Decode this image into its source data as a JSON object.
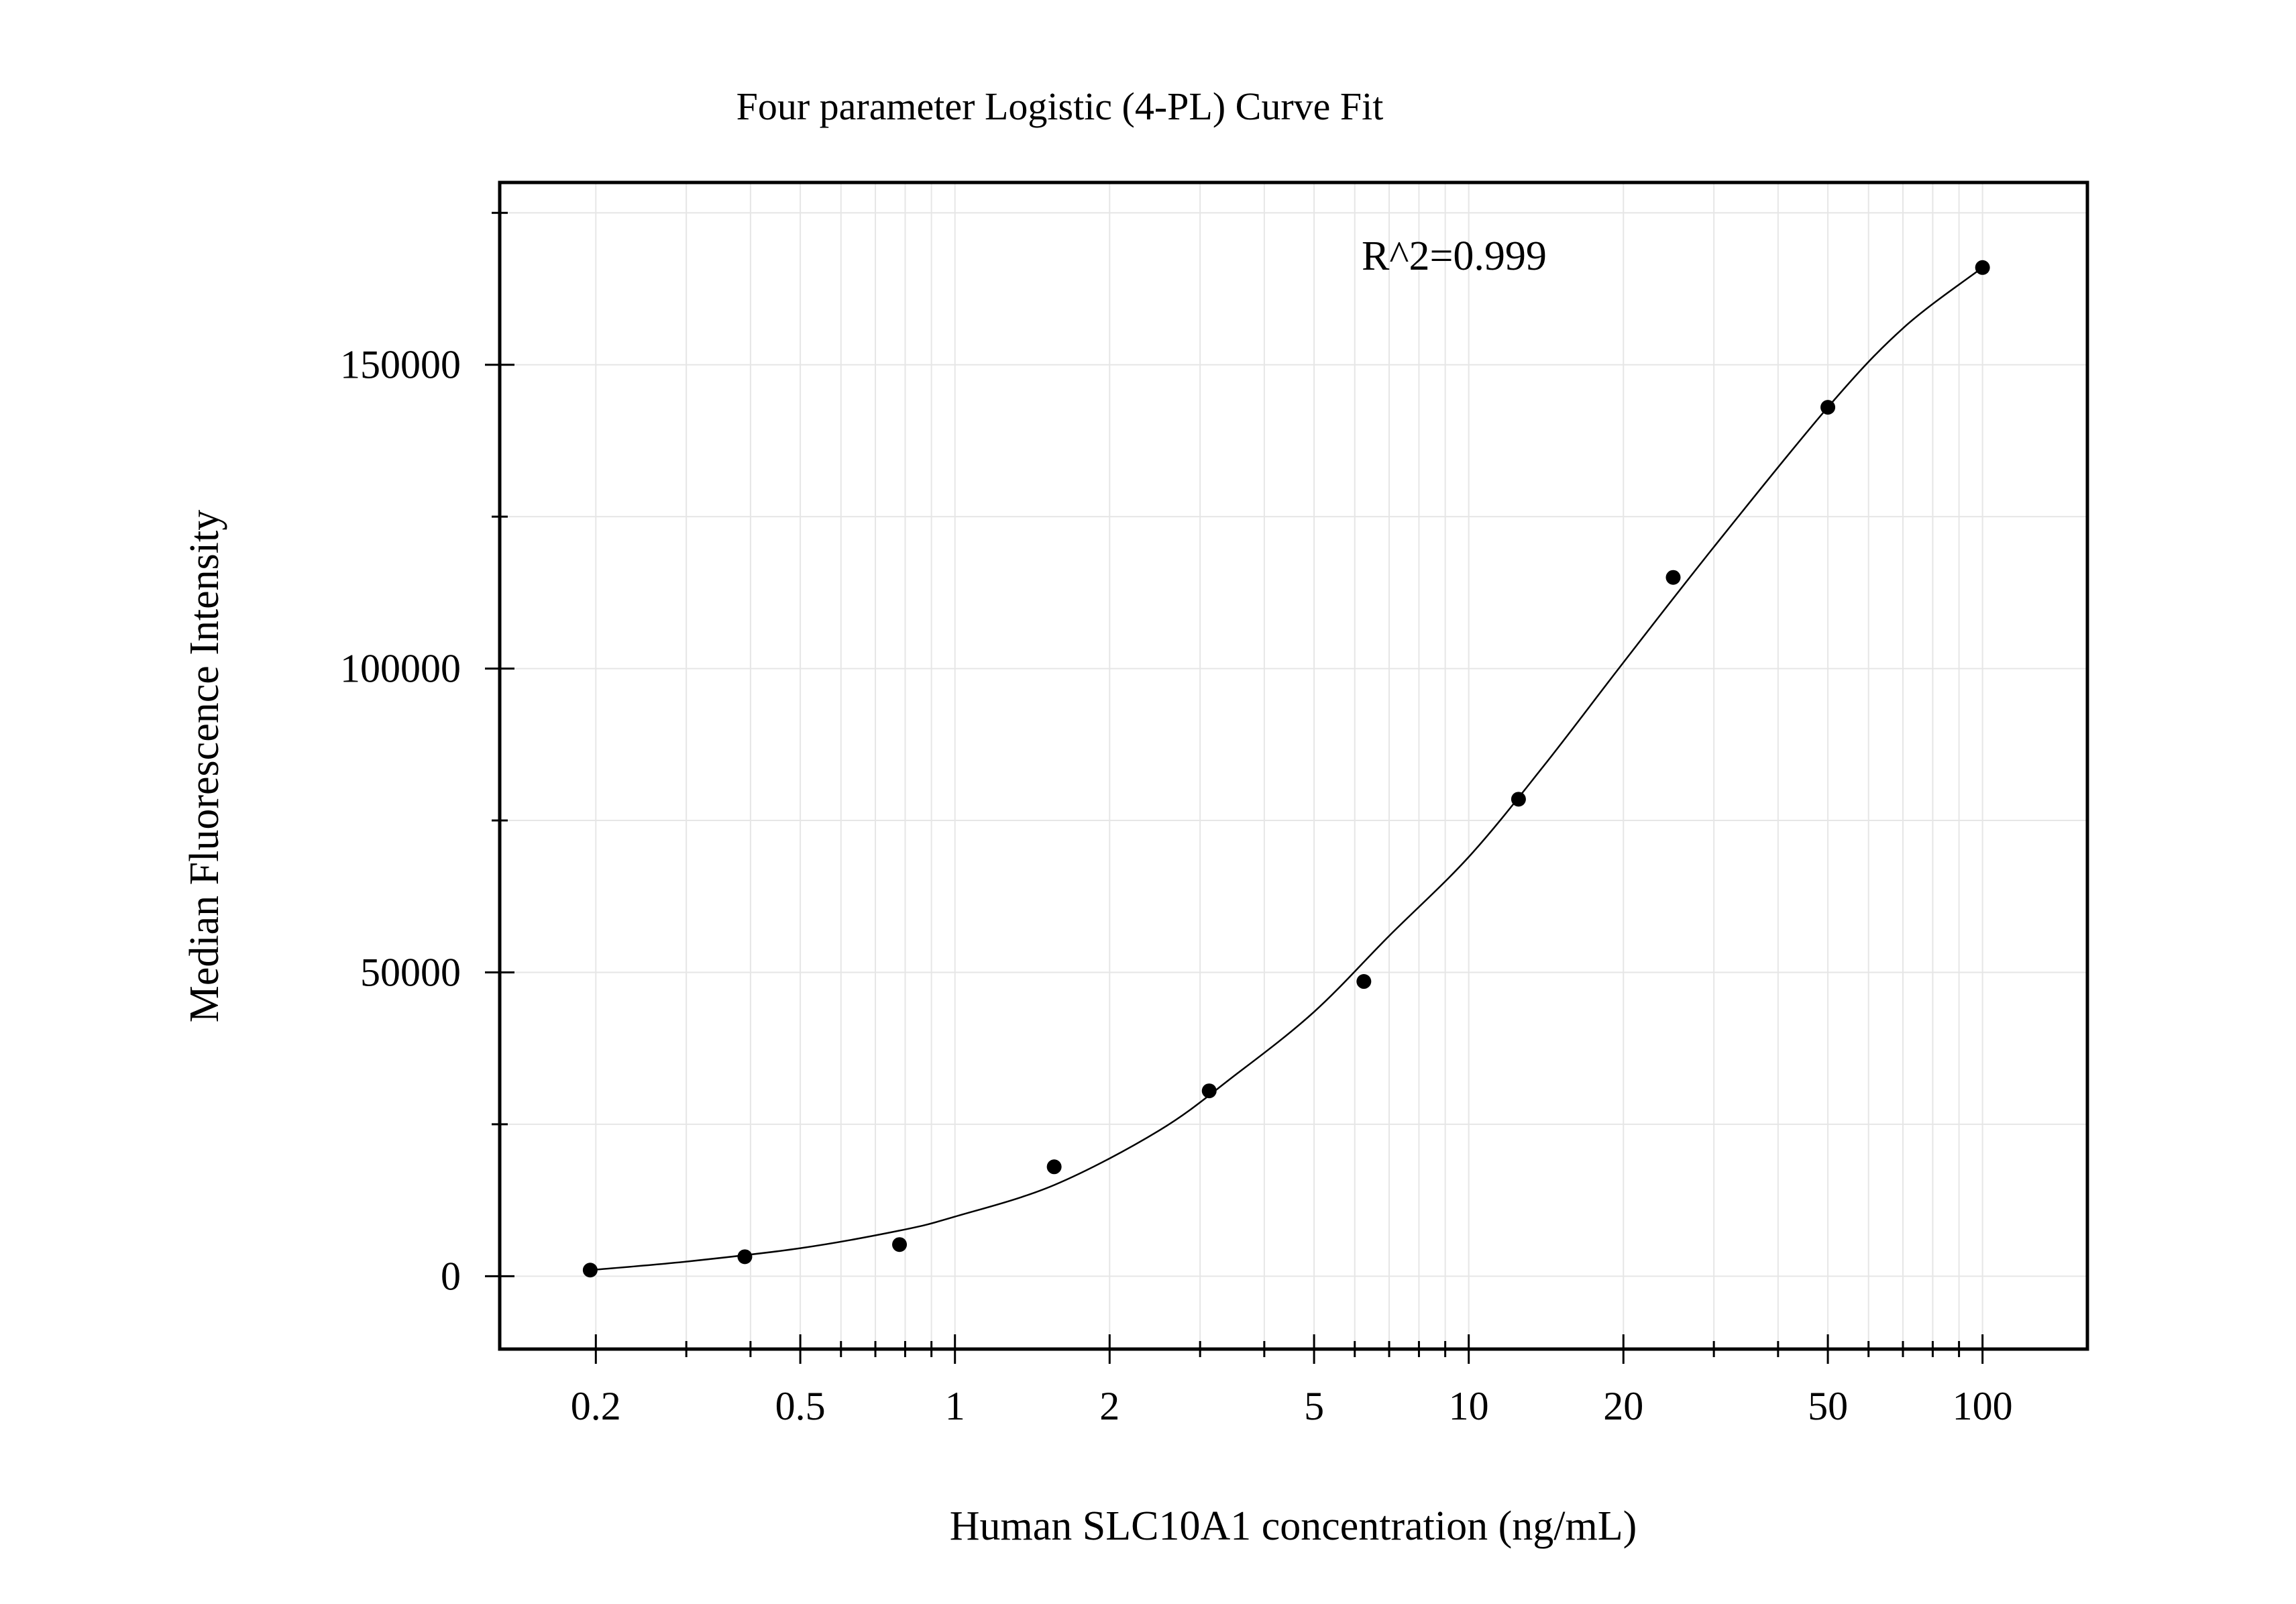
{
  "chart_data": {
    "type": "scatter",
    "title": "Four parameter Logistic (4-PL) Curve Fit",
    "xlabel": "Human SLC10A1 concentration (ng/mL)",
    "ylabel": "Median Fluorescence Intensity",
    "annotation": "R^2=0.999",
    "x_scale": "log",
    "xlim": [
      0.13,
      160
    ],
    "ylim": [
      -12000,
      180000
    ],
    "x_ticks": [
      {
        "value": 0.2,
        "label": "0.2"
      },
      {
        "value": 0.5,
        "label": "0.5"
      },
      {
        "value": 1,
        "label": "1"
      },
      {
        "value": 2,
        "label": "2"
      },
      {
        "value": 5,
        "label": "5"
      },
      {
        "value": 10,
        "label": "10"
      },
      {
        "value": 20,
        "label": "20"
      },
      {
        "value": 50,
        "label": "50"
      },
      {
        "value": 100,
        "label": "100"
      }
    ],
    "y_ticks": [
      {
        "value": 0,
        "label": "0"
      },
      {
        "value": 50000,
        "label": "50000"
      },
      {
        "value": 100000,
        "label": "100000"
      },
      {
        "value": 150000,
        "label": "150000"
      }
    ],
    "grid": true,
    "colors": {
      "points": "#000000",
      "curve": "#000000",
      "grid": "#e6e6e6",
      "frame": "#000000"
    },
    "series": [
      {
        "x": [
          0.195,
          0.39,
          0.78,
          1.56,
          3.125,
          6.25,
          12.5,
          25,
          50,
          100
        ],
        "y": [
          1000,
          3200,
          5200,
          18000,
          30500,
          48500,
          78500,
          115000,
          143000,
          166000
        ]
      }
    ],
    "fit_curve": {
      "x": [
        0.195,
        0.3,
        0.5,
        0.78,
        1,
        1.56,
        2.5,
        3.5,
        5,
        7,
        10,
        14,
        20,
        30,
        50,
        70,
        100
      ],
      "y": [
        1000,
        2400,
        4600,
        7500,
        9800,
        15000,
        24000,
        33000,
        43500,
        56000,
        69000,
        84000,
        101000,
        120000,
        143000,
        156000,
        166000
      ]
    }
  }
}
